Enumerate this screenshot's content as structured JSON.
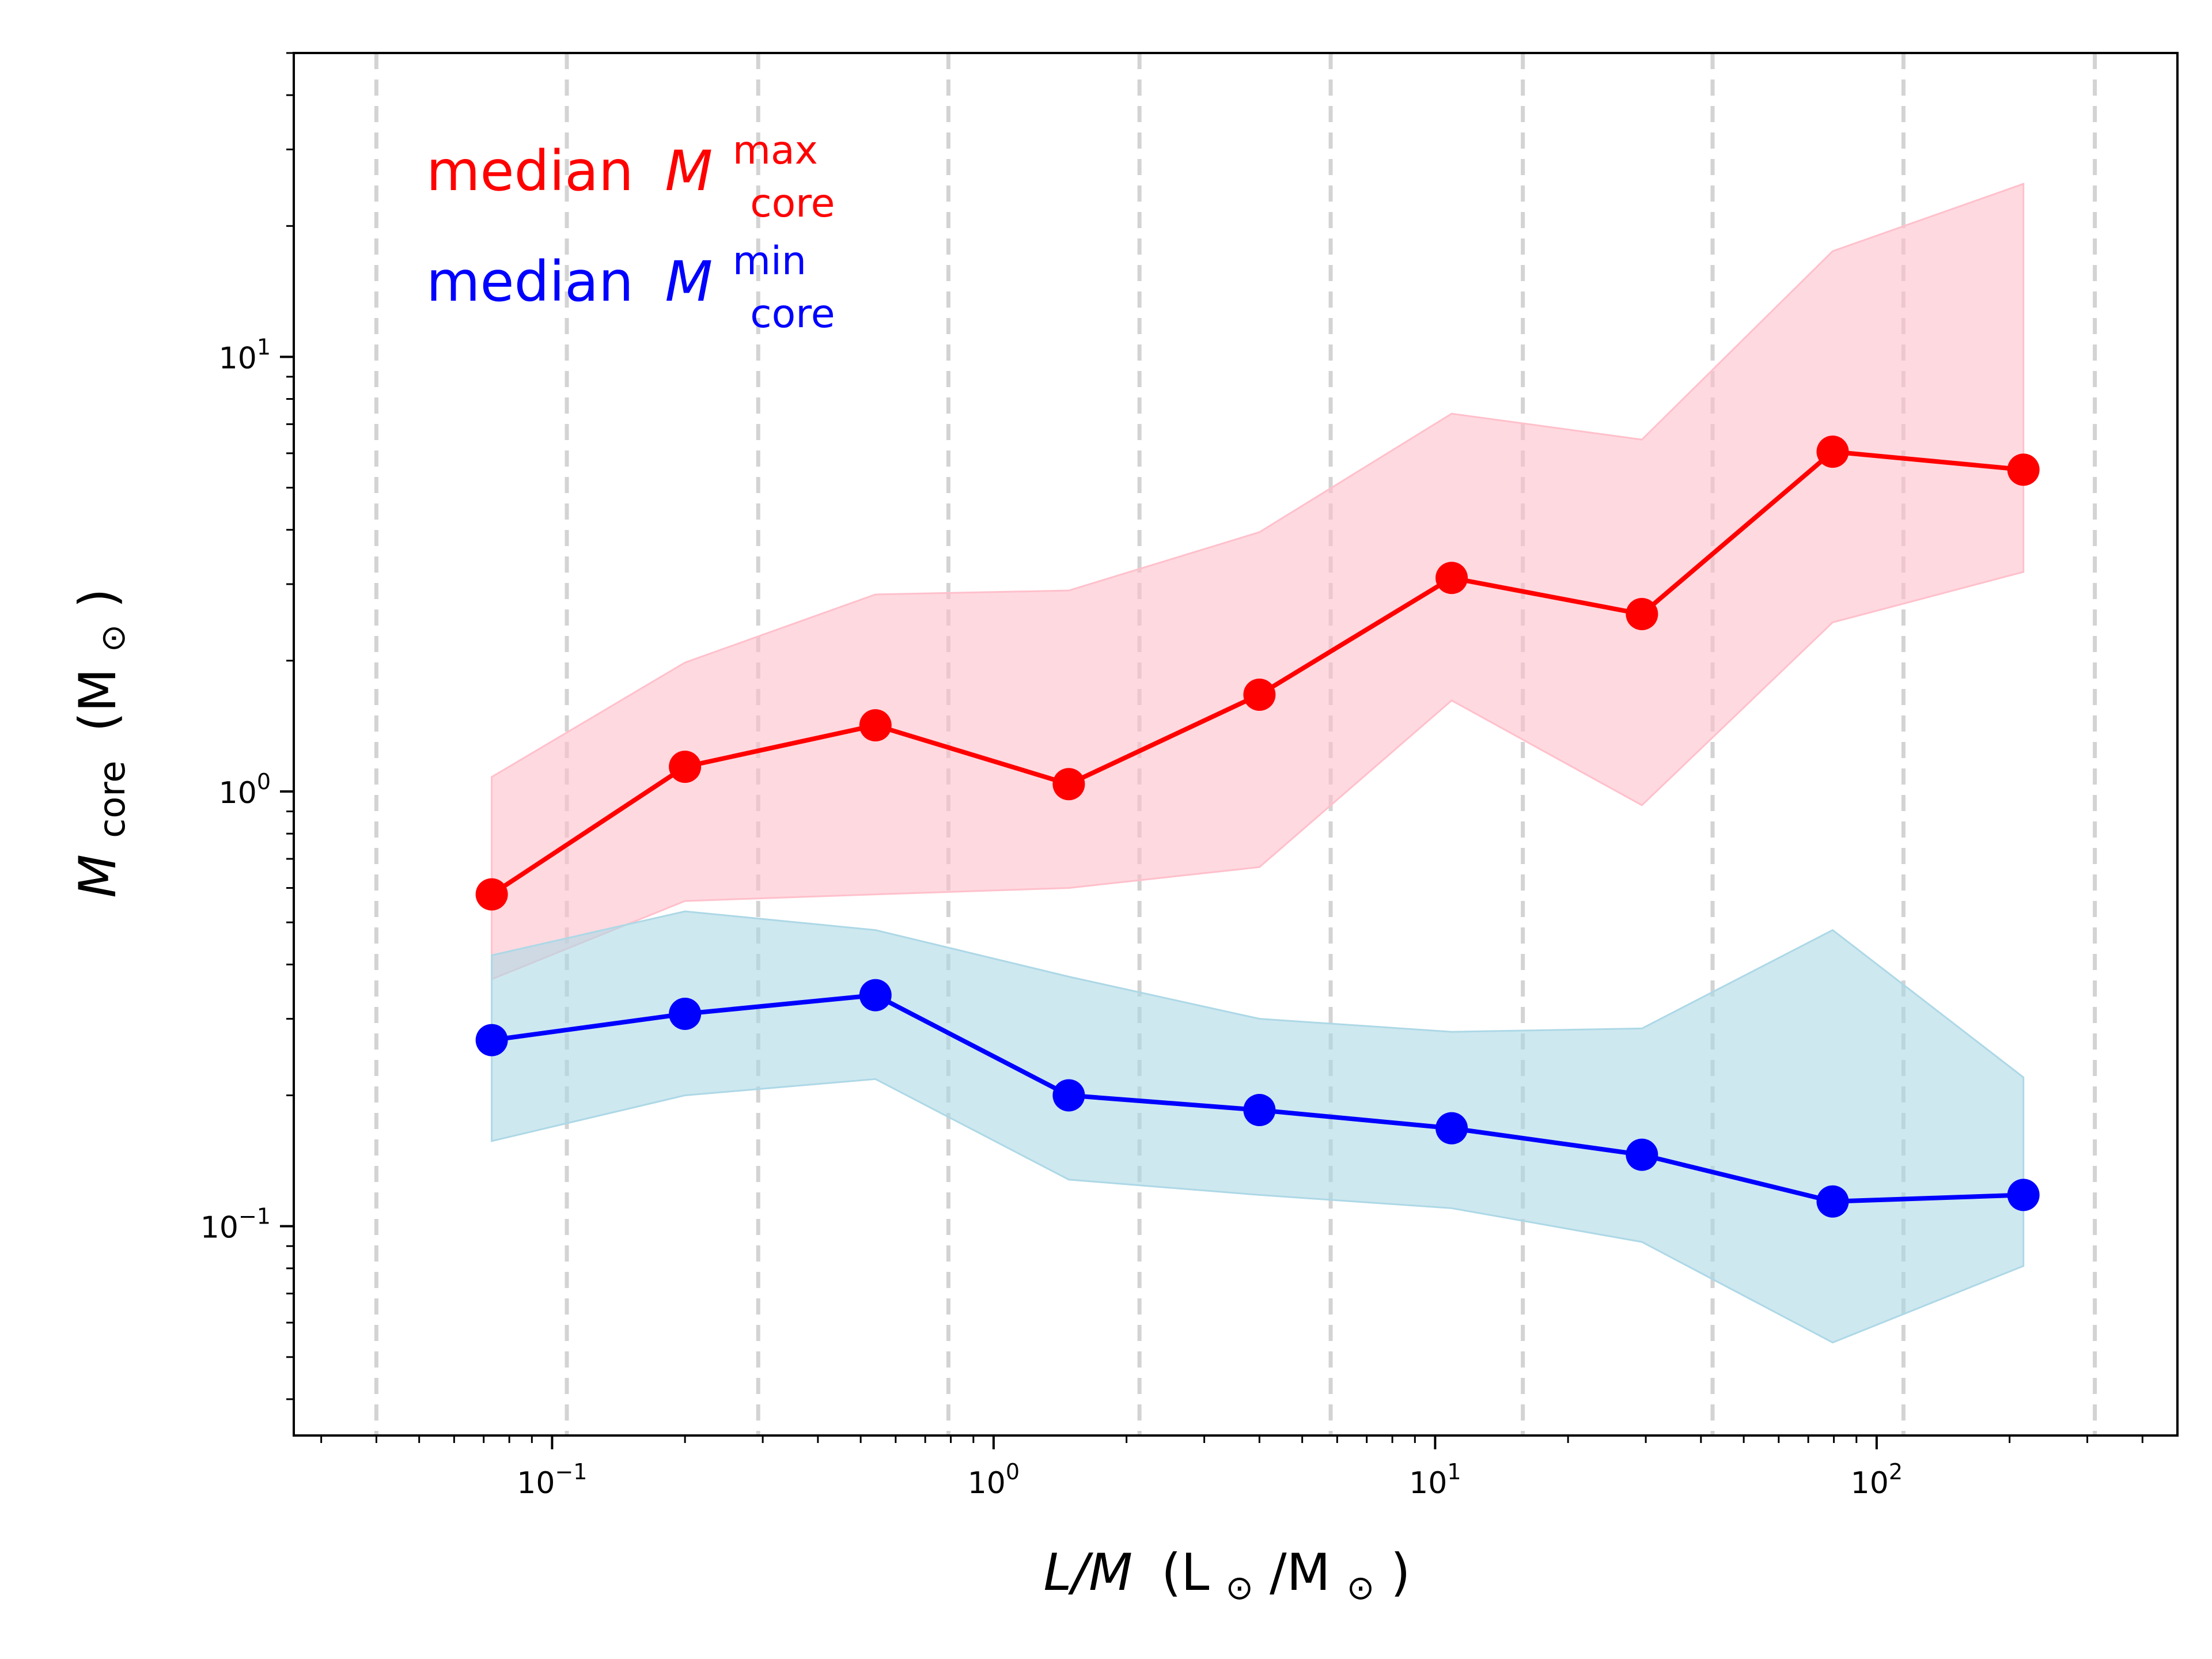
{
  "chart_data": {
    "type": "line",
    "x_scale": "log",
    "y_scale": "log",
    "xlim": [
      0.026,
      480
    ],
    "ylim": [
      0.033,
      50
    ],
    "grid": false,
    "vlines": [
      0.04,
      0.108,
      0.293,
      0.79,
      2.14,
      5.8,
      15.8,
      42.5,
      115,
      312
    ],
    "vline_color": "#d3d3d3",
    "xlabel": {
      "italic": "L/M",
      "rest": "(L",
      "sun": "⊙",
      "slash": "/M",
      "sun2": "⊙",
      "close": ")"
    },
    "ylabel": {
      "italic": "M",
      "sub": "core",
      "rest": "(M",
      "sun": "⊙",
      "close": ")"
    },
    "x": [
      0.073,
      0.2,
      0.54,
      1.48,
      4.0,
      10.9,
      29.4,
      79.5,
      215
    ],
    "series": [
      {
        "name": "median M_core^max",
        "color": "#ff0000",
        "fill_color": "#ffc0cb",
        "values": [
          0.58,
          1.14,
          1.42,
          1.04,
          1.67,
          3.1,
          2.56,
          6.05,
          5.5
        ],
        "band_upper": [
          1.08,
          1.98,
          2.84,
          2.9,
          3.95,
          7.4,
          6.45,
          17.5,
          25.0
        ],
        "band_lower": [
          0.37,
          0.56,
          0.58,
          0.6,
          0.67,
          1.62,
          0.93,
          2.45,
          3.2
        ]
      },
      {
        "name": "median M_core^min",
        "color": "#0000ff",
        "fill_color": "#add8e6",
        "values": [
          0.268,
          0.308,
          0.34,
          0.2,
          0.185,
          0.168,
          0.146,
          0.114,
          0.118
        ],
        "band_upper": [
          0.42,
          0.53,
          0.48,
          0.375,
          0.3,
          0.28,
          0.285,
          0.48,
          0.22
        ],
        "band_lower": [
          0.157,
          0.2,
          0.218,
          0.128,
          0.118,
          0.11,
          0.092,
          0.054,
          0.081
        ]
      }
    ],
    "legend": {
      "placement": "top-left",
      "entries": [
        {
          "word": "median",
          "sym": "M",
          "sup": "max",
          "sub": "core",
          "color": "#ff0000"
        },
        {
          "word": "median",
          "sym": "M",
          "sup": "min",
          "sub": "core",
          "color": "#0000ff"
        }
      ]
    },
    "x_ticks": [
      {
        "value": 0.1,
        "base": "10",
        "exp": "−1"
      },
      {
        "value": 1,
        "base": "10",
        "exp": "0"
      },
      {
        "value": 10,
        "base": "10",
        "exp": "1"
      },
      {
        "value": 100,
        "base": "10",
        "exp": "2"
      }
    ],
    "y_ticks": [
      {
        "value": 0.1,
        "base": "10",
        "exp": "−1"
      },
      {
        "value": 1,
        "base": "10",
        "exp": "0"
      },
      {
        "value": 10,
        "base": "10",
        "exp": "1"
      }
    ]
  }
}
